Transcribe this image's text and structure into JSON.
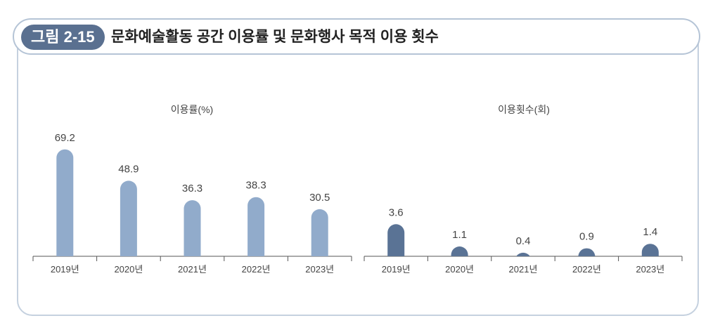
{
  "figure": {
    "badge": "그림 2-15",
    "title": "문화예술활동 공간 이용률 및 문화행사 목적 이용 횟수"
  },
  "colors": {
    "left_bar": "#91abcb",
    "right_bar": "#5a7395",
    "axis": "#555555"
  },
  "chart_data": [
    {
      "type": "bar",
      "title": "이용률(%)",
      "categories": [
        "2019년",
        "2020년",
        "2021년",
        "2022년",
        "2023년"
      ],
      "values": [
        69.2,
        48.9,
        36.3,
        38.3,
        30.5
      ],
      "value_labels": [
        "69.2",
        "48.9",
        "36.3",
        "38.3",
        "30.5"
      ],
      "ylim": [
        0,
        75
      ],
      "grid": false
    },
    {
      "type": "bar",
      "title": "이용횟수(회)",
      "categories": [
        "2019년",
        "2020년",
        "2021년",
        "2022년",
        "2023년"
      ],
      "values": [
        3.6,
        1.1,
        0.4,
        0.9,
        1.4
      ],
      "value_labels": [
        "3.6",
        "1.1",
        "0.4",
        "0.9",
        "1.4"
      ],
      "ylim": [
        0,
        13
      ],
      "grid": false
    }
  ]
}
